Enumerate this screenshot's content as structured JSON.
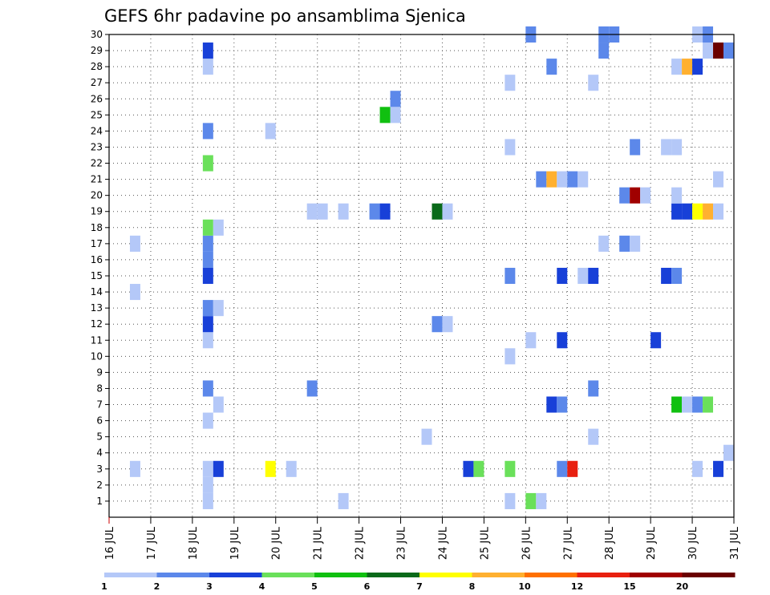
{
  "chart_data": {
    "type": "heatmap",
    "title": "GEFS 6hr padavine po ansamblima Sjenica",
    "xlabel": "",
    "ylabel": "",
    "x_range": [
      16,
      31
    ],
    "x_tick_values": [
      16,
      17,
      18,
      19,
      20,
      21,
      22,
      23,
      24,
      25,
      26,
      27,
      28,
      29,
      30,
      31
    ],
    "x_tick_labels": [
      "16 JUL",
      "17 JUL",
      "18 JUL",
      "19 JUL",
      "20 JUL",
      "21 JUL",
      "22 JUL",
      "23 JUL",
      "24 JUL",
      "25 JUL",
      "26 JUL",
      "27 JUL",
      "28 JUL",
      "29 JUL",
      "30 JUL",
      "31 JUL"
    ],
    "y_range": [
      0,
      30
    ],
    "y_tick_labels": [
      "1",
      "2",
      "3",
      "4",
      "5",
      "6",
      "7",
      "8",
      "9",
      "10",
      "11",
      "12",
      "13",
      "14",
      "15",
      "16",
      "17",
      "18",
      "19",
      "20",
      "21",
      "22",
      "23",
      "24",
      "25",
      "26",
      "27",
      "28",
      "29",
      "30"
    ],
    "grid": true,
    "cells_per_day": 4,
    "legend": {
      "placement": "bottom",
      "levels": [
        "1",
        "2",
        "3",
        "4",
        "5",
        "6",
        "7",
        "8",
        "10",
        "12",
        "15",
        "20"
      ],
      "colors": [
        "#b4c8f8",
        "#5c88ea",
        "#1840d8",
        "#6ae05a",
        "#10c010",
        "#0a6a1a",
        "#ffff00",
        "#ffb030",
        "#ff7000",
        "#e82010",
        "#a00000",
        "#6a0000"
      ]
    },
    "cells": [
      {
        "m": 1,
        "x": 18.25,
        "c": 1
      },
      {
        "m": 1,
        "x": 21.5,
        "c": 1
      },
      {
        "m": 1,
        "x": 25.5,
        "c": 1
      },
      {
        "m": 1,
        "x": 26.0,
        "c": 4
      },
      {
        "m": 1,
        "x": 26.25,
        "c": 1
      },
      {
        "m": 2,
        "x": 18.25,
        "c": 1
      },
      {
        "m": 3,
        "x": 16.5,
        "c": 1
      },
      {
        "m": 3,
        "x": 18.25,
        "c": 1
      },
      {
        "m": 3,
        "x": 18.5,
        "c": 3
      },
      {
        "m": 3,
        "x": 19.75,
        "c": 7
      },
      {
        "m": 3,
        "x": 20.25,
        "c": 1
      },
      {
        "m": 3,
        "x": 24.5,
        "c": 3
      },
      {
        "m": 3,
        "x": 24.75,
        "c": 4
      },
      {
        "m": 3,
        "x": 25.5,
        "c": 4
      },
      {
        "m": 3,
        "x": 26.75,
        "c": 2
      },
      {
        "m": 3,
        "x": 27.0,
        "c": 10
      },
      {
        "m": 3,
        "x": 30.0,
        "c": 1
      },
      {
        "m": 3,
        "x": 30.5,
        "c": 3
      },
      {
        "m": 4,
        "x": 30.75,
        "c": 1
      },
      {
        "m": 5,
        "x": 23.5,
        "c": 1
      },
      {
        "m": 5,
        "x": 27.5,
        "c": 1
      },
      {
        "m": 6,
        "x": 18.25,
        "c": 1
      },
      {
        "m": 7,
        "x": 18.5,
        "c": 1
      },
      {
        "m": 7,
        "x": 26.5,
        "c": 3
      },
      {
        "m": 7,
        "x": 26.75,
        "c": 2
      },
      {
        "m": 7,
        "x": 29.5,
        "c": 5
      },
      {
        "m": 7,
        "x": 29.75,
        "c": 1
      },
      {
        "m": 7,
        "x": 30.0,
        "c": 2
      },
      {
        "m": 7,
        "x": 30.25,
        "c": 4
      },
      {
        "m": 8,
        "x": 18.25,
        "c": 2
      },
      {
        "m": 8,
        "x": 20.75,
        "c": 2
      },
      {
        "m": 8,
        "x": 27.5,
        "c": 2
      },
      {
        "m": 10,
        "x": 25.5,
        "c": 1
      },
      {
        "m": 11,
        "x": 18.25,
        "c": 1
      },
      {
        "m": 11,
        "x": 26.0,
        "c": 1
      },
      {
        "m": 11,
        "x": 26.75,
        "c": 3
      },
      {
        "m": 11,
        "x": 29.0,
        "c": 3
      },
      {
        "m": 12,
        "x": 18.25,
        "c": 3
      },
      {
        "m": 12,
        "x": 23.75,
        "c": 2
      },
      {
        "m": 12,
        "x": 24.0,
        "c": 1
      },
      {
        "m": 13,
        "x": 18.25,
        "c": 2
      },
      {
        "m": 13,
        "x": 18.5,
        "c": 1
      },
      {
        "m": 14,
        "x": 16.5,
        "c": 1
      },
      {
        "m": 15,
        "x": 18.25,
        "c": 3
      },
      {
        "m": 15,
        "x": 25.5,
        "c": 2
      },
      {
        "m": 15,
        "x": 26.75,
        "c": 3
      },
      {
        "m": 15,
        "x": 27.25,
        "c": 1
      },
      {
        "m": 15,
        "x": 27.5,
        "c": 3
      },
      {
        "m": 15,
        "x": 29.25,
        "c": 3
      },
      {
        "m": 15,
        "x": 29.5,
        "c": 2
      },
      {
        "m": 16,
        "x": 18.25,
        "c": 2
      },
      {
        "m": 17,
        "x": 16.5,
        "c": 1
      },
      {
        "m": 17,
        "x": 18.25,
        "c": 2
      },
      {
        "m": 17,
        "x": 27.75,
        "c": 1
      },
      {
        "m": 17,
        "x": 28.25,
        "c": 2
      },
      {
        "m": 17,
        "x": 28.5,
        "c": 1
      },
      {
        "m": 18,
        "x": 18.25,
        "c": 4
      },
      {
        "m": 18,
        "x": 18.5,
        "c": 1
      },
      {
        "m": 19,
        "x": 20.75,
        "c": 1
      },
      {
        "m": 19,
        "x": 21.0,
        "c": 1
      },
      {
        "m": 19,
        "x": 21.5,
        "c": 1
      },
      {
        "m": 19,
        "x": 22.25,
        "c": 2
      },
      {
        "m": 19,
        "x": 22.5,
        "c": 3
      },
      {
        "m": 19,
        "x": 23.75,
        "c": 6
      },
      {
        "m": 19,
        "x": 24.0,
        "c": 1
      },
      {
        "m": 19,
        "x": 29.5,
        "c": 3
      },
      {
        "m": 19,
        "x": 29.75,
        "c": 3
      },
      {
        "m": 19,
        "x": 30.0,
        "c": 7
      },
      {
        "m": 19,
        "x": 30.25,
        "c": 8
      },
      {
        "m": 19,
        "x": 30.5,
        "c": 1
      },
      {
        "m": 20,
        "x": 28.25,
        "c": 2
      },
      {
        "m": 20,
        "x": 28.5,
        "c": 11
      },
      {
        "m": 20,
        "x": 28.75,
        "c": 1
      },
      {
        "m": 20,
        "x": 29.5,
        "c": 1
      },
      {
        "m": 21,
        "x": 26.25,
        "c": 2
      },
      {
        "m": 21,
        "x": 26.5,
        "c": 8
      },
      {
        "m": 21,
        "x": 26.75,
        "c": 1
      },
      {
        "m": 21,
        "x": 27.0,
        "c": 2
      },
      {
        "m": 21,
        "x": 27.25,
        "c": 1
      },
      {
        "m": 21,
        "x": 30.5,
        "c": 1
      },
      {
        "m": 22,
        "x": 18.25,
        "c": 4
      },
      {
        "m": 23,
        "x": 25.5,
        "c": 1
      },
      {
        "m": 23,
        "x": 28.5,
        "c": 2
      },
      {
        "m": 23,
        "x": 29.25,
        "c": 1
      },
      {
        "m": 23,
        "x": 29.5,
        "c": 1
      },
      {
        "m": 24,
        "x": 18.25,
        "c": 2
      },
      {
        "m": 24,
        "x": 19.75,
        "c": 1
      },
      {
        "m": 25,
        "x": 22.5,
        "c": 5
      },
      {
        "m": 25,
        "x": 22.75,
        "c": 1
      },
      {
        "m": 26,
        "x": 22.75,
        "c": 2
      },
      {
        "m": 27,
        "x": 25.5,
        "c": 1
      },
      {
        "m": 27,
        "x": 27.5,
        "c": 1
      },
      {
        "m": 28,
        "x": 18.25,
        "c": 1
      },
      {
        "m": 28,
        "x": 26.5,
        "c": 2
      },
      {
        "m": 28,
        "x": 29.5,
        "c": 1
      },
      {
        "m": 28,
        "x": 29.75,
        "c": 8
      },
      {
        "m": 28,
        "x": 30.0,
        "c": 3
      },
      {
        "m": 29,
        "x": 18.25,
        "c": 3
      },
      {
        "m": 29,
        "x": 27.75,
        "c": 2
      },
      {
        "m": 29,
        "x": 30.25,
        "c": 1
      },
      {
        "m": 29,
        "x": 30.5,
        "c": 12
      },
      {
        "m": 29,
        "x": 30.75,
        "c": 2
      },
      {
        "m": 30,
        "x": 26.0,
        "c": 2
      },
      {
        "m": 30,
        "x": 27.75,
        "c": 2
      },
      {
        "m": 30,
        "x": 28.0,
        "c": 2
      },
      {
        "m": 30,
        "x": 30.0,
        "c": 1
      },
      {
        "m": 30,
        "x": 30.25,
        "c": 2
      }
    ]
  }
}
